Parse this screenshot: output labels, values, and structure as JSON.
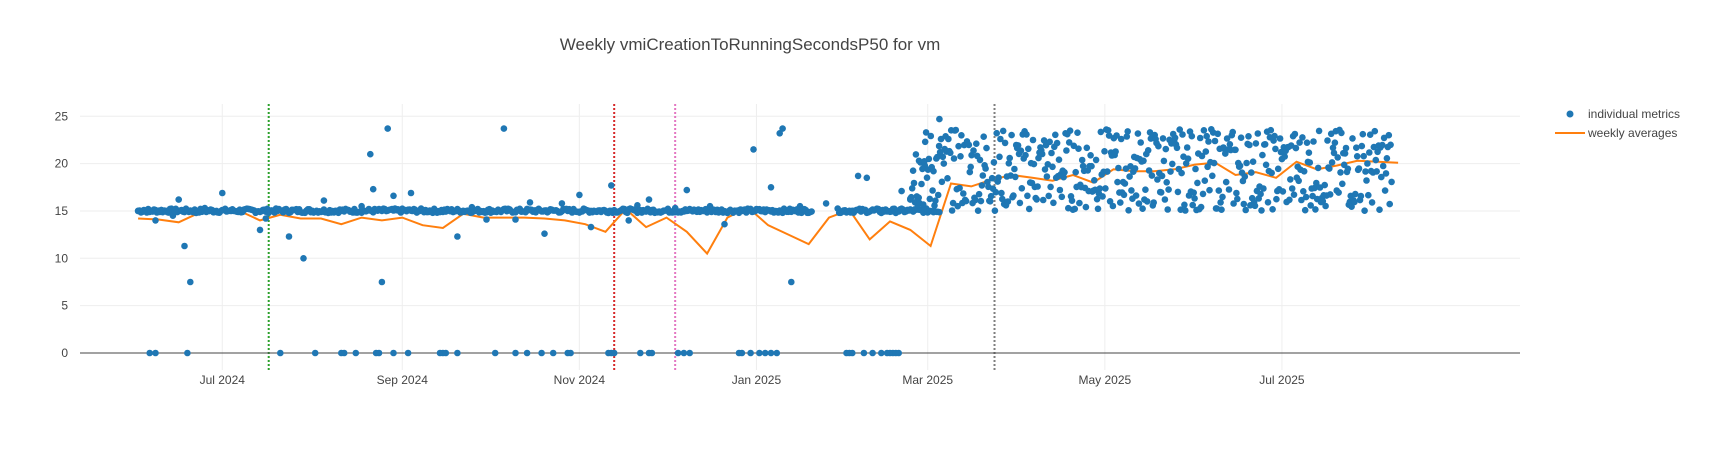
{
  "chart_data": {
    "type": "scatter",
    "title": "Weekly vmiCreationToRunningSecondsP50 for vm",
    "xlabel": "",
    "ylabel": "",
    "x_range": [
      "2024-05-13",
      "2025-09-21"
    ],
    "ylim": [
      -1.8,
      26.3
    ],
    "grid": true,
    "legend_position": "top-right",
    "x_ticks": [
      {
        "date": "2024-07-01",
        "label": "Jul 2024"
      },
      {
        "date": "2024-09-01",
        "label": "Sep 2024"
      },
      {
        "date": "2024-11-01",
        "label": "Nov 2024"
      },
      {
        "date": "2025-01-01",
        "label": "Jan 2025"
      },
      {
        "date": "2025-03-01",
        "label": "Mar 2025"
      },
      {
        "date": "2025-05-01",
        "label": "May 2025"
      },
      {
        "date": "2025-07-01",
        "label": "Jul 2025"
      }
    ],
    "y_ticks": [
      0,
      5,
      10,
      15,
      20,
      25
    ],
    "vertical_lines": [
      {
        "date": "2024-07-17",
        "color": "#2ca02c"
      },
      {
        "date": "2024-11-13",
        "color": "#d62728"
      },
      {
        "date": "2024-12-04",
        "color": "#e377c2"
      },
      {
        "date": "2025-03-24",
        "color": "#7f7f7f"
      }
    ],
    "series": [
      {
        "name": "individual metrics",
        "mode": "markers",
        "color": "#1f77b4",
        "points": [
          [
            "2024-06-06",
            0
          ],
          [
            "2024-06-08",
            0
          ],
          [
            "2024-06-19",
            0
          ],
          [
            "2024-07-21",
            0
          ],
          [
            "2024-08-02",
            0
          ],
          [
            "2024-08-11",
            0
          ],
          [
            "2024-08-12",
            0
          ],
          [
            "2024-08-16",
            0
          ],
          [
            "2024-08-23",
            0
          ],
          [
            "2024-08-24",
            0
          ],
          [
            "2024-08-29",
            0
          ],
          [
            "2024-09-03",
            0
          ],
          [
            "2024-09-14",
            0
          ],
          [
            "2024-09-15",
            0
          ],
          [
            "2024-09-16",
            0
          ],
          [
            "2024-09-20",
            0
          ],
          [
            "2024-10-03",
            0
          ],
          [
            "2024-10-10",
            0
          ],
          [
            "2024-10-14",
            0
          ],
          [
            "2024-10-19",
            0
          ],
          [
            "2024-10-23",
            0
          ],
          [
            "2024-10-28",
            0
          ],
          [
            "2024-10-29",
            0
          ],
          [
            "2024-11-11",
            0
          ],
          [
            "2024-11-12",
            0
          ],
          [
            "2024-11-13",
            0
          ],
          [
            "2024-11-22",
            0
          ],
          [
            "2024-11-25",
            0
          ],
          [
            "2024-11-26",
            0
          ],
          [
            "2024-12-05",
            0
          ],
          [
            "2024-12-07",
            0
          ],
          [
            "2024-12-09",
            0
          ],
          [
            "2024-12-26",
            0
          ],
          [
            "2024-12-27",
            0
          ],
          [
            "2024-12-30",
            0
          ],
          [
            "2025-01-02",
            0
          ],
          [
            "2025-01-04",
            0
          ],
          [
            "2025-01-06",
            0
          ],
          [
            "2025-01-08",
            0
          ],
          [
            "2025-02-01",
            0
          ],
          [
            "2025-02-02",
            0
          ],
          [
            "2025-02-03",
            0
          ],
          [
            "2025-02-07",
            0
          ],
          [
            "2025-02-10",
            0
          ],
          [
            "2025-02-13",
            0
          ],
          [
            "2025-02-15",
            0
          ],
          [
            "2025-02-16",
            0
          ],
          [
            "2025-02-17",
            0
          ],
          [
            "2025-02-18",
            0
          ],
          [
            "2025-02-19",
            0
          ],
          [
            "2024-06-02",
            15.0
          ],
          [
            "2024-06-04",
            15.1
          ],
          [
            "2024-06-06",
            14.9
          ],
          [
            "2024-06-08",
            14.0
          ],
          [
            "2024-06-10",
            15.1
          ],
          [
            "2024-06-12",
            15.0
          ],
          [
            "2024-06-14",
            14.5
          ],
          [
            "2024-06-16",
            16.2
          ],
          [
            "2024-06-18",
            11.3
          ],
          [
            "2024-06-20",
            7.5
          ],
          [
            "2024-06-22",
            14.8
          ],
          [
            "2024-06-25",
            15.3
          ],
          [
            "2024-06-28",
            15.0
          ],
          [
            "2024-07-01",
            16.9
          ],
          [
            "2024-07-04",
            15.1
          ],
          [
            "2024-07-08",
            14.9
          ],
          [
            "2024-07-14",
            13.0
          ],
          [
            "2024-07-16",
            14.2
          ],
          [
            "2024-07-24",
            12.3
          ],
          [
            "2024-07-29",
            10.0
          ],
          [
            "2024-08-05",
            16.1
          ],
          [
            "2024-08-10",
            14.9
          ],
          [
            "2024-08-18",
            15.5
          ],
          [
            "2024-08-21",
            21.0
          ],
          [
            "2024-08-22",
            17.3
          ],
          [
            "2024-08-25",
            7.5
          ],
          [
            "2024-08-27",
            23.7
          ],
          [
            "2024-08-29",
            16.6
          ],
          [
            "2024-09-04",
            16.9
          ],
          [
            "2024-09-20",
            12.3
          ],
          [
            "2024-09-25",
            15.4
          ],
          [
            "2024-09-30",
            14.1
          ],
          [
            "2024-10-06",
            23.7
          ],
          [
            "2024-10-10",
            14.1
          ],
          [
            "2024-10-15",
            15.9
          ],
          [
            "2024-10-20",
            12.6
          ],
          [
            "2024-10-26",
            15.8
          ],
          [
            "2024-11-01",
            16.7
          ],
          [
            "2024-11-05",
            13.3
          ],
          [
            "2024-11-12",
            17.7
          ],
          [
            "2024-11-18",
            14.0
          ],
          [
            "2024-11-21",
            15.6
          ],
          [
            "2024-11-25",
            16.2
          ],
          [
            "2024-12-04",
            15.3
          ],
          [
            "2024-12-08",
            17.2
          ],
          [
            "2024-12-16",
            15.5
          ],
          [
            "2024-12-21",
            13.6
          ],
          [
            "2024-12-31",
            21.5
          ],
          [
            "2025-01-06",
            17.5
          ],
          [
            "2025-01-09",
            23.2
          ],
          [
            "2025-01-10",
            23.7
          ],
          [
            "2025-01-13",
            7.5
          ],
          [
            "2025-01-16",
            15.5
          ],
          [
            "2025-01-25",
            15.8
          ],
          [
            "2025-02-05",
            18.7
          ],
          [
            "2025-02-08",
            18.5
          ],
          [
            "2025-02-13",
            14.8
          ],
          [
            "2025-02-20",
            17.1
          ],
          [
            "2025-02-23",
            16.2
          ],
          [
            "2025-02-26",
            20.3
          ],
          [
            "2025-02-28",
            19.8
          ],
          [
            "2025-03-05",
            24.7
          ]
        ]
      },
      {
        "name": "weekly averages",
        "mode": "lines",
        "color": "#ff7f0e",
        "points": [
          [
            "2024-06-02",
            14.2
          ],
          [
            "2024-06-09",
            14.1
          ],
          [
            "2024-06-16",
            13.8
          ],
          [
            "2024-06-23",
            14.8
          ],
          [
            "2024-06-30",
            15.0
          ],
          [
            "2024-07-07",
            15.0
          ],
          [
            "2024-07-14",
            14.0
          ],
          [
            "2024-07-21",
            14.6
          ],
          [
            "2024-07-28",
            14.2
          ],
          [
            "2024-08-04",
            14.2
          ],
          [
            "2024-08-11",
            13.6
          ],
          [
            "2024-08-18",
            14.3
          ],
          [
            "2024-08-25",
            14.0
          ],
          [
            "2024-09-01",
            14.3
          ],
          [
            "2024-09-08",
            13.5
          ],
          [
            "2024-09-15",
            13.2
          ],
          [
            "2024-09-22",
            14.7
          ],
          [
            "2024-09-29",
            14.3
          ],
          [
            "2024-10-06",
            14.3
          ],
          [
            "2024-10-13",
            14.3
          ],
          [
            "2024-10-20",
            14.2
          ],
          [
            "2024-10-27",
            14.0
          ],
          [
            "2024-11-03",
            13.6
          ],
          [
            "2024-11-10",
            12.8
          ],
          [
            "2024-11-17",
            15.2
          ],
          [
            "2024-11-24",
            13.3
          ],
          [
            "2024-12-01",
            14.3
          ],
          [
            "2024-12-08",
            12.8
          ],
          [
            "2024-12-15",
            10.5
          ],
          [
            "2024-12-22",
            14.3
          ],
          [
            "2024-12-29",
            15.4
          ],
          [
            "2025-01-05",
            13.5
          ],
          [
            "2025-01-12",
            12.5
          ],
          [
            "2025-01-19",
            11.5
          ],
          [
            "2025-01-26",
            14.3
          ],
          [
            "2025-02-02",
            15.1
          ],
          [
            "2025-02-09",
            12.0
          ],
          [
            "2025-02-16",
            13.9
          ],
          [
            "2025-02-23",
            13.0
          ],
          [
            "2025-03-02",
            11.3
          ],
          [
            "2025-03-09",
            17.9
          ],
          [
            "2025-03-16",
            17.6
          ],
          [
            "2025-03-23",
            18.3
          ],
          [
            "2025-03-30",
            18.8
          ],
          [
            "2025-04-06",
            18.5
          ],
          [
            "2025-04-13",
            18.2
          ],
          [
            "2025-04-20",
            18.8
          ],
          [
            "2025-04-27",
            18.0
          ],
          [
            "2025-05-04",
            19.4
          ],
          [
            "2025-05-11",
            19.2
          ],
          [
            "2025-05-18",
            19.2
          ],
          [
            "2025-05-25",
            19.4
          ],
          [
            "2025-06-01",
            19.9
          ],
          [
            "2025-06-08",
            20.1
          ],
          [
            "2025-06-15",
            18.8
          ],
          [
            "2025-06-22",
            19.1
          ],
          [
            "2025-06-29",
            18.5
          ],
          [
            "2025-07-06",
            20.2
          ],
          [
            "2025-07-13",
            19.4
          ],
          [
            "2025-07-20",
            19.8
          ],
          [
            "2025-07-27",
            20.3
          ],
          [
            "2025-08-03",
            20.2
          ],
          [
            "2025-08-10",
            20.1
          ]
        ]
      }
    ]
  }
}
